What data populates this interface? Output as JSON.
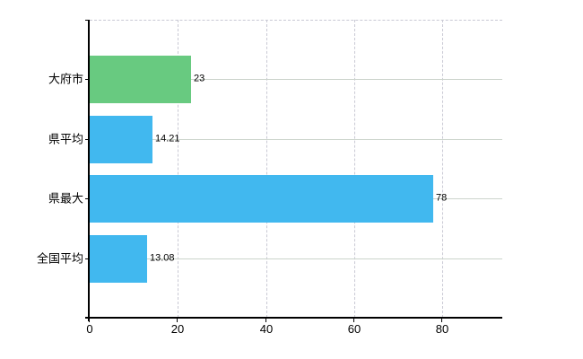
{
  "chart_data": {
    "type": "bar",
    "orientation": "horizontal",
    "title": "",
    "xlabel": "",
    "ylabel": "",
    "categories": [
      "大府市",
      "県平均",
      "県最大",
      "全国平均"
    ],
    "values": [
      23,
      14.21,
      78,
      13.08
    ],
    "value_labels": [
      "23",
      "14.21",
      "78",
      "13.08"
    ],
    "bar_colors": [
      "#68ca80",
      "#41b8ef",
      "#41b8ef",
      "#41b8ef"
    ],
    "x_tick_labels": [
      "0",
      "20",
      "40",
      "60",
      "80"
    ],
    "x_tick_values": [
      0,
      20,
      40,
      60,
      80
    ],
    "xlim": [
      0,
      93.6
    ],
    "grid": {
      "horizontal_style": "solid",
      "vertical_style": "dashed"
    },
    "legend_position": "none"
  },
  "colors": {
    "background": "#ffffff",
    "axis_line": "#000000",
    "grid_horizontal": "#ccd4cc",
    "grid_vertical": "#c9c9d4",
    "bar_green": "#68ca80",
    "bar_blue": "#41b8ef",
    "label_text": "#000000"
  }
}
